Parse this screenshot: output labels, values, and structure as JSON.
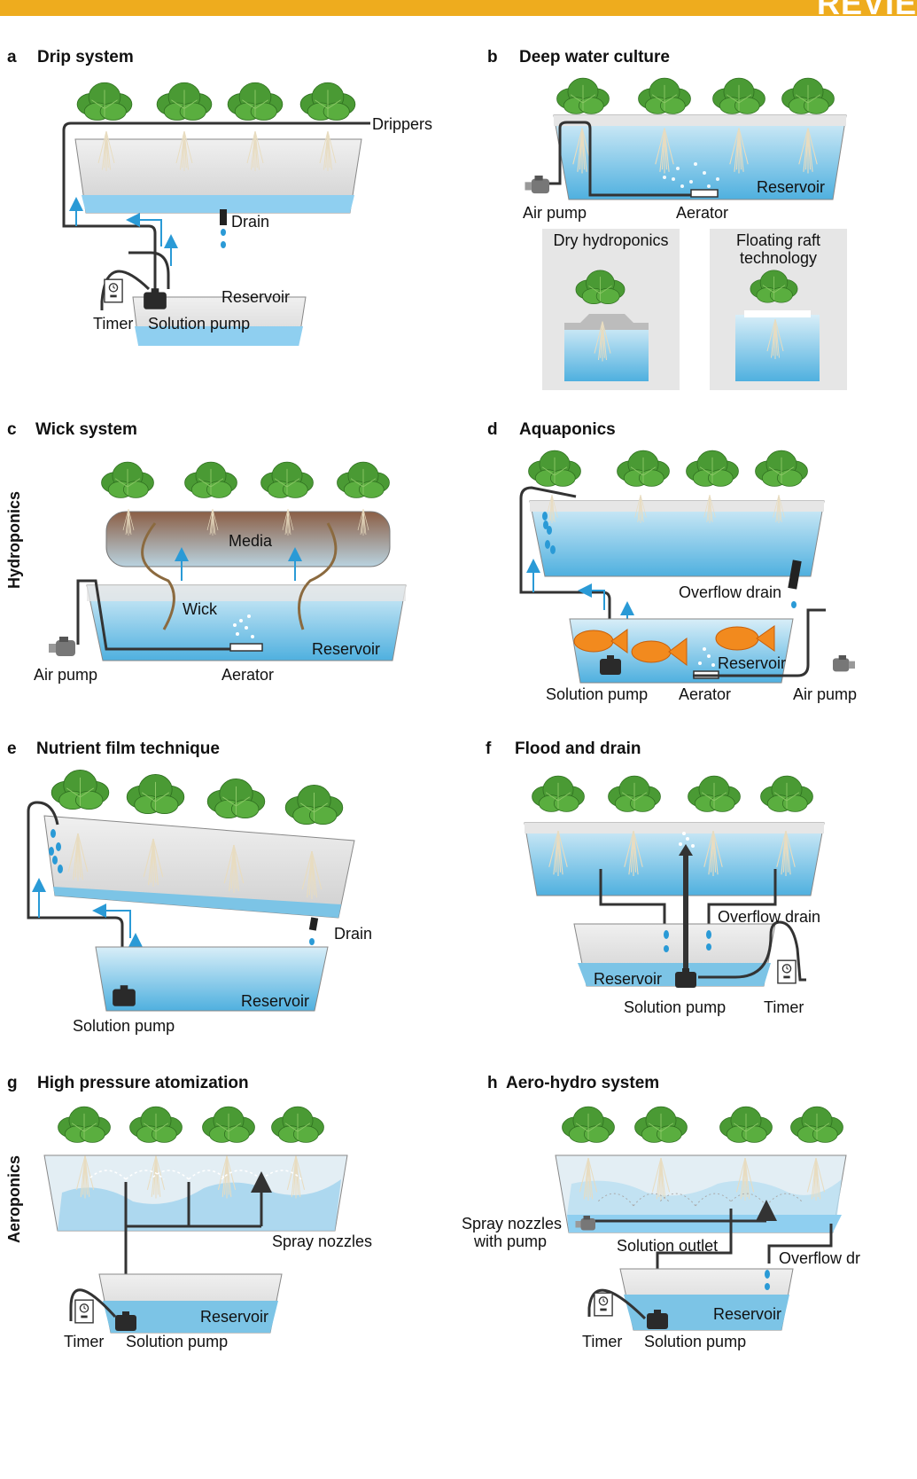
{
  "header": {
    "journal_tag": "REVIE"
  },
  "side_labels": {
    "hydroponics": "Hydroponics",
    "aeroponics": "Aeroponics"
  },
  "panels": {
    "a": {
      "letter": "a",
      "title": "Drip system",
      "drippers": "Drippers",
      "drain": "Drain",
      "reservoir": "Reservoir",
      "timer": "Timer",
      "solution_pump": "Solution pump"
    },
    "b": {
      "letter": "b",
      "title": "Deep water culture",
      "reservoir": "Reservoir",
      "air_pump": "Air pump",
      "aerator": "Aerator",
      "dry_hydroponics": "Dry hydroponics",
      "floating_raft_1": "Floating raft",
      "floating_raft_2": "technology"
    },
    "c": {
      "letter": "c",
      "title": "Wick system",
      "media": "Media",
      "wick": "Wick",
      "reservoir": "Reservoir",
      "air_pump": "Air pump",
      "aerator": "Aerator"
    },
    "d": {
      "letter": "d",
      "title": "Aquaponics",
      "overflow_drain": "Overflow drain",
      "reservoir": "Reservoir",
      "solution_pump": "Solution pump",
      "aerator": "Aerator",
      "air_pump": "Air pump"
    },
    "e": {
      "letter": "e",
      "title": "Nutrient film technique",
      "drain": "Drain",
      "reservoir": "Reservoir",
      "solution_pump": "Solution pump"
    },
    "f": {
      "letter": "f",
      "title": "Flood and drain",
      "overflow_drain": "Overflow drain",
      "reservoir": "Reservoir",
      "solution_pump": "Solution pump",
      "timer": "Timer"
    },
    "g": {
      "letter": "g",
      "title": "High pressure atomization",
      "spray_nozzles": "Spray nozzles",
      "reservoir": "Reservoir",
      "timer": "Timer",
      "solution_pump": "Solution pump"
    },
    "h": {
      "letter": "h",
      "title": "Aero-hydro system",
      "spray_1": "Spray nozzles",
      "spray_2": "with pump",
      "solution_outlet": "Solution outlet",
      "overflow_drain": "Overflow dr",
      "reservoir": "Reservoir",
      "timer": "Timer",
      "solution_pump": "Solution pump"
    }
  },
  "colors": {
    "accent": "#eeac1e",
    "water": "#7cc4e6",
    "tank": "#dedede",
    "leaf": "#4a9a34",
    "pipe": "#333333",
    "arrow": "#2a9ad6"
  }
}
